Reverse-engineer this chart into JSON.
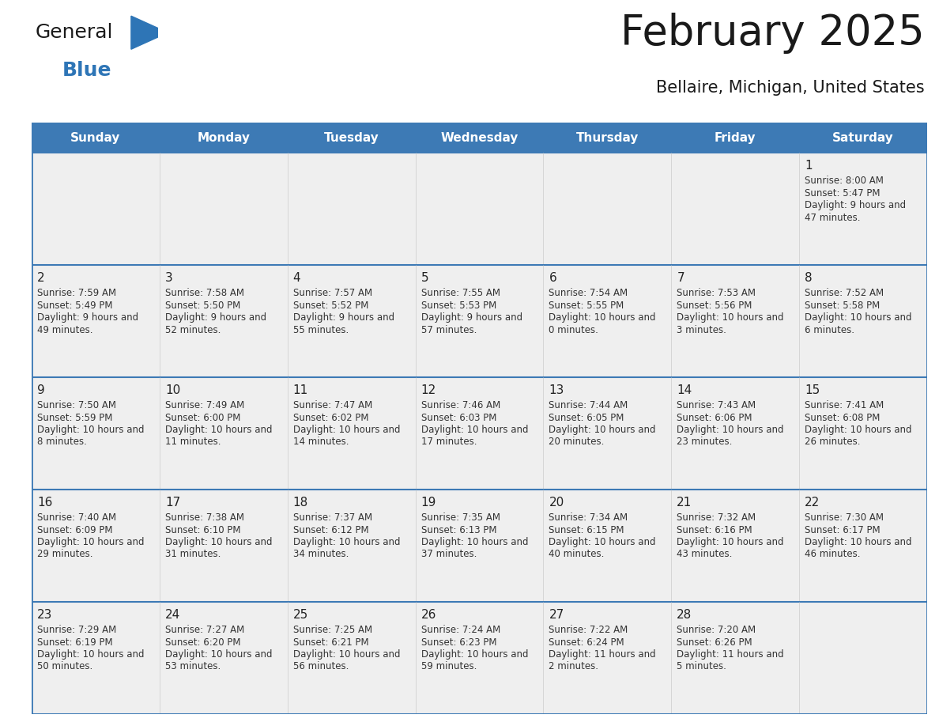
{
  "title": "February 2025",
  "subtitle": "Bellaire, Michigan, United States",
  "header_bg": "#3d7ab5",
  "header_text_color": "#ffffff",
  "row_bg": "#efefef",
  "border_color": "#3d7ab5",
  "separator_color": "#3d7ab5",
  "day_headers": [
    "Sunday",
    "Monday",
    "Tuesday",
    "Wednesday",
    "Thursday",
    "Friday",
    "Saturday"
  ],
  "title_color": "#1a1a1a",
  "subtitle_color": "#1a1a1a",
  "cell_text_color": "#333333",
  "day_num_color": "#222222",
  "calendar": [
    [
      null,
      null,
      null,
      null,
      null,
      null,
      {
        "day": 1,
        "sunrise": "8:00 AM",
        "sunset": "5:47 PM",
        "daylight": "9 hours and 47 minutes"
      }
    ],
    [
      {
        "day": 2,
        "sunrise": "7:59 AM",
        "sunset": "5:49 PM",
        "daylight": "9 hours and 49 minutes"
      },
      {
        "day": 3,
        "sunrise": "7:58 AM",
        "sunset": "5:50 PM",
        "daylight": "9 hours and 52 minutes"
      },
      {
        "day": 4,
        "sunrise": "7:57 AM",
        "sunset": "5:52 PM",
        "daylight": "9 hours and 55 minutes"
      },
      {
        "day": 5,
        "sunrise": "7:55 AM",
        "sunset": "5:53 PM",
        "daylight": "9 hours and 57 minutes"
      },
      {
        "day": 6,
        "sunrise": "7:54 AM",
        "sunset": "5:55 PM",
        "daylight": "10 hours and 0 minutes"
      },
      {
        "day": 7,
        "sunrise": "7:53 AM",
        "sunset": "5:56 PM",
        "daylight": "10 hours and 3 minutes"
      },
      {
        "day": 8,
        "sunrise": "7:52 AM",
        "sunset": "5:58 PM",
        "daylight": "10 hours and 6 minutes"
      }
    ],
    [
      {
        "day": 9,
        "sunrise": "7:50 AM",
        "sunset": "5:59 PM",
        "daylight": "10 hours and 8 minutes"
      },
      {
        "day": 10,
        "sunrise": "7:49 AM",
        "sunset": "6:00 PM",
        "daylight": "10 hours and 11 minutes"
      },
      {
        "day": 11,
        "sunrise": "7:47 AM",
        "sunset": "6:02 PM",
        "daylight": "10 hours and 14 minutes"
      },
      {
        "day": 12,
        "sunrise": "7:46 AM",
        "sunset": "6:03 PM",
        "daylight": "10 hours and 17 minutes"
      },
      {
        "day": 13,
        "sunrise": "7:44 AM",
        "sunset": "6:05 PM",
        "daylight": "10 hours and 20 minutes"
      },
      {
        "day": 14,
        "sunrise": "7:43 AM",
        "sunset": "6:06 PM",
        "daylight": "10 hours and 23 minutes"
      },
      {
        "day": 15,
        "sunrise": "7:41 AM",
        "sunset": "6:08 PM",
        "daylight": "10 hours and 26 minutes"
      }
    ],
    [
      {
        "day": 16,
        "sunrise": "7:40 AM",
        "sunset": "6:09 PM",
        "daylight": "10 hours and 29 minutes"
      },
      {
        "day": 17,
        "sunrise": "7:38 AM",
        "sunset": "6:10 PM",
        "daylight": "10 hours and 31 minutes"
      },
      {
        "day": 18,
        "sunrise": "7:37 AM",
        "sunset": "6:12 PM",
        "daylight": "10 hours and 34 minutes"
      },
      {
        "day": 19,
        "sunrise": "7:35 AM",
        "sunset": "6:13 PM",
        "daylight": "10 hours and 37 minutes"
      },
      {
        "day": 20,
        "sunrise": "7:34 AM",
        "sunset": "6:15 PM",
        "daylight": "10 hours and 40 minutes"
      },
      {
        "day": 21,
        "sunrise": "7:32 AM",
        "sunset": "6:16 PM",
        "daylight": "10 hours and 43 minutes"
      },
      {
        "day": 22,
        "sunrise": "7:30 AM",
        "sunset": "6:17 PM",
        "daylight": "10 hours and 46 minutes"
      }
    ],
    [
      {
        "day": 23,
        "sunrise": "7:29 AM",
        "sunset": "6:19 PM",
        "daylight": "10 hours and 50 minutes"
      },
      {
        "day": 24,
        "sunrise": "7:27 AM",
        "sunset": "6:20 PM",
        "daylight": "10 hours and 53 minutes"
      },
      {
        "day": 25,
        "sunrise": "7:25 AM",
        "sunset": "6:21 PM",
        "daylight": "10 hours and 56 minutes"
      },
      {
        "day": 26,
        "sunrise": "7:24 AM",
        "sunset": "6:23 PM",
        "daylight": "10 hours and 59 minutes"
      },
      {
        "day": 27,
        "sunrise": "7:22 AM",
        "sunset": "6:24 PM",
        "daylight": "11 hours and 2 minutes"
      },
      {
        "day": 28,
        "sunrise": "7:20 AM",
        "sunset": "6:26 PM",
        "daylight": "11 hours and 5 minutes"
      },
      null
    ]
  ],
  "logo_triangle_color": "#2e75b6",
  "fig_width": 11.88,
  "fig_height": 9.18,
  "dpi": 100
}
